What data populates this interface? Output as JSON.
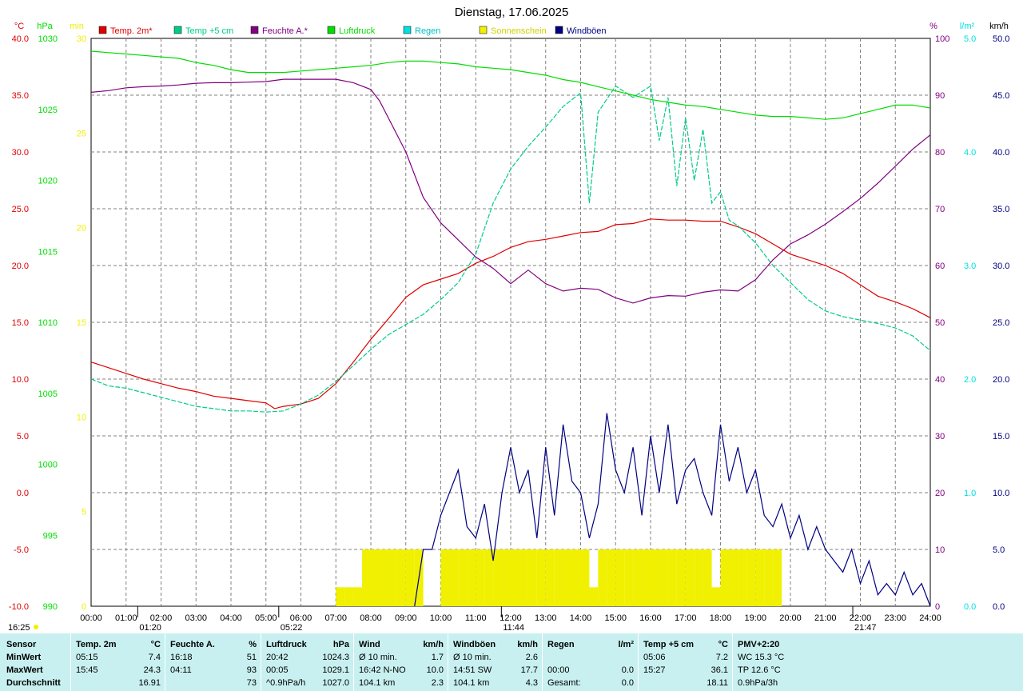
{
  "title": "Dienstag, 17.06.2025",
  "colors": {
    "temp2m": "#e00000",
    "temp5cm": "#00cc88",
    "humidity": "#800080",
    "pressure": "#00dd00",
    "rain": "#00e0e0",
    "sunshine": "#f0f000",
    "gusts": "#000080",
    "grid": "#808080",
    "summary_bg": "#c8f0f0"
  },
  "legend": [
    {
      "label": "Temp. 2m*",
      "color": "#e00000"
    },
    {
      "label": "Temp +5 cm",
      "color": "#00cc88"
    },
    {
      "label": "Feuchte A.*",
      "color": "#800080"
    },
    {
      "label": "Luftdruck",
      "color": "#00dd00"
    },
    {
      "label": "Regen",
      "color": "#00e0e0"
    },
    {
      "label": "Sonnenschein",
      "color": "#f0f000"
    },
    {
      "label": "Windböen",
      "color": "#000080"
    }
  ],
  "axes": {
    "temp": {
      "unit": "°C",
      "ticks": [
        "40.0",
        "35.0",
        "30.0",
        "25.0",
        "20.0",
        "15.0",
        "10.0",
        "5.0",
        "0.0",
        "-5.0",
        "-10.0"
      ]
    },
    "pressure": {
      "unit": "hPa",
      "ticks": [
        "1030",
        "1025",
        "1020",
        "1015",
        "1010",
        "1005",
        "1000",
        "995",
        "990"
      ]
    },
    "sun": {
      "unit": "min",
      "ticks": [
        "30",
        "25",
        "20",
        "15",
        "10",
        "5",
        "0"
      ]
    },
    "humidity": {
      "unit": "%",
      "ticks": [
        "100",
        "90",
        "80",
        "70",
        "60",
        "50",
        "40",
        "30",
        "20",
        "10",
        "0"
      ]
    },
    "rain": {
      "unit": "l/m²",
      "ticks": [
        "5.0",
        "4.0",
        "3.0",
        "2.0",
        "1.0",
        "0.0"
      ]
    },
    "wind": {
      "unit": "km/h",
      "ticks": [
        "50.0",
        "45.0",
        "40.0",
        "35.0",
        "30.0",
        "25.0",
        "20.0",
        "15.0",
        "10.0",
        "5.0",
        "0.0"
      ]
    },
    "x_ticks": [
      "00:00",
      "01:00",
      "02:00",
      "03:00",
      "04:00",
      "05:00",
      "06:00",
      "07:00",
      "08:00",
      "09:00",
      "10:00",
      "11:00",
      "12:00",
      "13:00",
      "14:00",
      "15:00",
      "16:00",
      "17:00",
      "18:00",
      "19:00",
      "20:00",
      "21:00",
      "22:00",
      "23:00",
      "24:00"
    ]
  },
  "events": {
    "left_time": "16:25",
    "moonrise": "01:20",
    "sunrise": "05:22",
    "solar_noon": "11:44",
    "sunset": "21:47"
  },
  "chart_data": {
    "type": "line",
    "title": "Dienstag, 17.06.2025",
    "x_unit": "hour of day",
    "xlim": [
      0,
      24
    ],
    "series": [
      {
        "name": "Temp. 2m*",
        "axis": "temp",
        "ylim": [
          -10,
          40
        ],
        "x": [
          0,
          0.5,
          1,
          1.5,
          2,
          2.5,
          3,
          3.5,
          4,
          4.5,
          5,
          5.25,
          5.5,
          6,
          6.5,
          7,
          7.5,
          8,
          8.5,
          9,
          9.5,
          10,
          10.5,
          11,
          11.5,
          12,
          12.5,
          13,
          13.5,
          14,
          14.5,
          15,
          15.5,
          16,
          16.5,
          17,
          17.5,
          18,
          18.5,
          19,
          19.5,
          20,
          20.5,
          21,
          21.5,
          22,
          22.5,
          23,
          23.5,
          24
        ],
        "y": [
          11.5,
          11.0,
          10.5,
          10.0,
          9.6,
          9.2,
          8.9,
          8.5,
          8.3,
          8.1,
          7.9,
          7.4,
          7.6,
          7.8,
          8.3,
          9.6,
          11.5,
          13.5,
          15.3,
          17.2,
          18.3,
          18.8,
          19.3,
          20.2,
          20.8,
          21.6,
          22.1,
          22.3,
          22.6,
          22.9,
          23.0,
          23.6,
          23.7,
          24.1,
          24.0,
          24.0,
          23.9,
          23.9,
          23.4,
          22.8,
          21.9,
          21.0,
          20.5,
          20.0,
          19.3,
          18.3,
          17.3,
          16.8,
          16.2,
          15.4
        ]
      },
      {
        "name": "Temp +5 cm",
        "axis": "temp",
        "ylim": [
          -10,
          40
        ],
        "x": [
          0,
          0.5,
          1,
          1.5,
          2,
          2.5,
          3,
          3.5,
          4,
          4.5,
          5,
          5.5,
          6,
          6.5,
          7,
          7.5,
          8,
          8.5,
          9,
          9.5,
          10,
          10.5,
          11,
          11.5,
          12,
          12.5,
          13,
          13.5,
          14,
          14.25,
          14.5,
          15,
          15.5,
          16,
          16.25,
          16.5,
          16.75,
          17,
          17.25,
          17.5,
          17.75,
          18,
          18.25,
          18.5,
          19,
          19.5,
          20,
          20.5,
          21,
          21.5,
          22,
          22.5,
          23,
          23.5,
          24
        ],
        "y": [
          10.0,
          9.4,
          9.2,
          8.8,
          8.4,
          8.0,
          7.6,
          7.4,
          7.2,
          7.2,
          7.1,
          7.2,
          7.8,
          8.6,
          9.8,
          11.2,
          12.6,
          13.9,
          14.8,
          15.7,
          17.0,
          18.5,
          21.0,
          25.5,
          28.5,
          30.5,
          32.2,
          34.0,
          35.2,
          25.5,
          33.5,
          35.8,
          34.8,
          35.8,
          31.0,
          34.8,
          27.0,
          33.0,
          27.5,
          32.0,
          25.5,
          26.5,
          24.0,
          23.5,
          22.0,
          20.0,
          18.5,
          17.0,
          16.0,
          15.5,
          15.2,
          14.9,
          14.5,
          13.8,
          12.5
        ]
      },
      {
        "name": "Feuchte A.*",
        "axis": "humidity",
        "ylim": [
          0,
          100
        ],
        "x": [
          0,
          0.5,
          1,
          1.5,
          2,
          2.5,
          3,
          3.5,
          4,
          4.5,
          5,
          5.5,
          6,
          6.5,
          7,
          7.5,
          8,
          8.25,
          8.5,
          9,
          9.5,
          10,
          10.5,
          11,
          11.5,
          12,
          12.5,
          13,
          13.5,
          14,
          14.5,
          15,
          15.5,
          16,
          16.5,
          17,
          17.5,
          18,
          18.5,
          19,
          19.5,
          20,
          20.5,
          21,
          21.5,
          22,
          22.5,
          23,
          23.5,
          24
        ],
        "y": [
          90.5,
          90.8,
          91.3,
          91.5,
          91.6,
          91.8,
          92.1,
          92.2,
          92.2,
          92.3,
          92.4,
          92.8,
          92.8,
          92.8,
          92.8,
          92.2,
          91.0,
          89.0,
          86.0,
          80.0,
          72.0,
          67.5,
          64.5,
          61.5,
          59.5,
          56.8,
          59.2,
          56.8,
          55.5,
          56.0,
          55.8,
          54.3,
          53.4,
          54.3,
          54.7,
          54.6,
          55.3,
          55.7,
          55.5,
          57.5,
          61.0,
          63.8,
          65.4,
          67.3,
          69.5,
          71.8,
          74.5,
          77.5,
          80.5,
          83.0
        ]
      },
      {
        "name": "Luftdruck",
        "axis": "pressure",
        "ylim": [
          990,
          1030
        ],
        "x": [
          0,
          0.5,
          1,
          1.5,
          2,
          2.5,
          3,
          3.5,
          4,
          4.5,
          5,
          5.5,
          6,
          6.5,
          7,
          7.5,
          8,
          8.5,
          9,
          9.5,
          10,
          10.5,
          11,
          11.5,
          12,
          12.5,
          13,
          13.5,
          14,
          14.5,
          15,
          15.5,
          16,
          16.5,
          17,
          17.5,
          18,
          18.5,
          19,
          19.5,
          20,
          20.5,
          21,
          21.5,
          22,
          22.5,
          23,
          23.5,
          24
        ],
        "y": [
          1029.1,
          1029.0,
          1028.9,
          1028.8,
          1028.7,
          1028.6,
          1028.3,
          1028.1,
          1027.8,
          1027.6,
          1027.6,
          1027.6,
          1027.7,
          1027.8,
          1027.9,
          1028.0,
          1028.1,
          1028.3,
          1028.4,
          1028.4,
          1028.3,
          1028.2,
          1028.0,
          1027.9,
          1027.8,
          1027.6,
          1027.4,
          1027.1,
          1026.9,
          1026.6,
          1026.3,
          1026.0,
          1025.7,
          1025.5,
          1025.3,
          1025.2,
          1025.0,
          1024.8,
          1024.6,
          1024.5,
          1024.5,
          1024.4,
          1024.3,
          1024.4,
          1024.7,
          1025.0,
          1025.3,
          1025.3,
          1025.1
        ]
      },
      {
        "name": "Windböen",
        "axis": "wind",
        "ylim": [
          0,
          50
        ],
        "x": [
          9.25,
          9.5,
          9.75,
          10,
          10.25,
          10.5,
          10.75,
          11,
          11.25,
          11.5,
          11.75,
          12,
          12.25,
          12.5,
          12.75,
          13,
          13.25,
          13.5,
          13.75,
          14,
          14.25,
          14.5,
          14.75,
          15,
          15.25,
          15.5,
          15.75,
          16,
          16.25,
          16.5,
          16.75,
          17,
          17.25,
          17.5,
          17.75,
          18,
          18.25,
          18.5,
          18.75,
          19,
          19.25,
          19.5,
          19.75,
          20,
          20.25,
          20.5,
          20.75,
          21,
          21.25,
          21.5,
          21.75,
          22,
          22.25,
          22.5,
          22.75,
          23,
          23.25,
          23.5,
          23.75,
          24
        ],
        "y": [
          0,
          5,
          5,
          8,
          10,
          12,
          7,
          6,
          9,
          4,
          10,
          14,
          10,
          12,
          6,
          14,
          8,
          16,
          11,
          10,
          6,
          9,
          17,
          12,
          10,
          14,
          8,
          15,
          10,
          16,
          9,
          12,
          13,
          10,
          8,
          16,
          11,
          14,
          10,
          12,
          8,
          7,
          9,
          6,
          8,
          5,
          7,
          5,
          4,
          3,
          5,
          2,
          4,
          1,
          2,
          1,
          3,
          1,
          2,
          0
        ]
      }
    ],
    "bars": {
      "name": "Sonnenschein",
      "axis": "sun",
      "ylim": [
        0,
        30
      ],
      "x": [
        7.0,
        7.25,
        7.5,
        7.75,
        8.0,
        8.25,
        8.5,
        8.75,
        9.0,
        9.25,
        10.0,
        10.25,
        10.5,
        10.75,
        11.0,
        11.25,
        11.5,
        11.75,
        12.0,
        12.25,
        12.5,
        12.75,
        13.0,
        13.25,
        13.5,
        13.75,
        14.0,
        14.25,
        14.5,
        14.75,
        15.0,
        15.25,
        15.5,
        15.75,
        16.0,
        16.25,
        16.5,
        16.75,
        17.0,
        17.25,
        17.5,
        17.75,
        18.0,
        18.25,
        18.5,
        18.75,
        19.0,
        19.25,
        19.5
      ],
      "values": [
        1,
        1,
        1,
        3,
        3,
        3,
        3,
        3,
        3,
        3,
        3,
        3,
        3,
        3,
        3,
        3,
        3,
        3,
        3,
        3,
        3,
        3,
        3,
        3,
        3,
        3,
        3,
        1,
        3,
        3,
        3,
        3,
        3,
        3,
        3,
        3,
        3,
        3,
        3,
        3,
        3,
        1,
        3,
        3,
        3,
        3,
        3,
        3,
        3
      ]
    },
    "rain_total": 0.0
  },
  "summary": {
    "headers": {
      "sensor": "Sensor",
      "rows": [
        "MinWert",
        "MaxWert",
        "Durchschnitt"
      ]
    },
    "groups": [
      {
        "title": "Temp. 2m",
        "unit": "°C",
        "rows": [
          [
            "05:15",
            "7.4"
          ],
          [
            "15:45",
            "24.3"
          ],
          [
            "",
            "16.91"
          ]
        ]
      },
      {
        "title": "Feuchte A.",
        "unit": "%",
        "rows": [
          [
            "16:18",
            "51"
          ],
          [
            "04:11",
            "93"
          ],
          [
            "",
            "73"
          ]
        ]
      },
      {
        "title": "Luftdruck",
        "unit": "hPa",
        "rows": [
          [
            "20:42",
            "1024.3"
          ],
          [
            "00:05",
            "1029.1"
          ],
          [
            "^0.9hPa/h",
            "1027.0"
          ]
        ]
      },
      {
        "title": "Wind",
        "unit": "km/h",
        "rows": [
          [
            "Ø 10 min.",
            "1.7"
          ],
          [
            "16:42   N-NO",
            "10.0"
          ],
          [
            "104.1 km",
            "2.3"
          ]
        ]
      },
      {
        "title": "Windböen",
        "unit": "km/h",
        "rows": [
          [
            "Ø 10 min.",
            "2.6"
          ],
          [
            "14:51       SW",
            "17.7"
          ],
          [
            "104.1 km",
            "4.3"
          ]
        ]
      },
      {
        "title": "Regen",
        "unit": "l/m²",
        "rows": [
          [
            "",
            ""
          ],
          [
            "00:00",
            "0.0"
          ],
          [
            "Gesamt:",
            "0.0"
          ]
        ]
      },
      {
        "title": "Temp +5 cm",
        "unit": "°C",
        "rows": [
          [
            "05:06",
            "7.2"
          ],
          [
            "15:27",
            "36.1"
          ],
          [
            "",
            "18.11"
          ]
        ]
      },
      {
        "title": "PMV+2:20",
        "unit": "",
        "rows": [
          [
            "WC 15.3 °C",
            ""
          ],
          [
            "TP 12.6 °C",
            ""
          ],
          [
            "0.9hPa/3h",
            ""
          ]
        ]
      }
    ]
  }
}
